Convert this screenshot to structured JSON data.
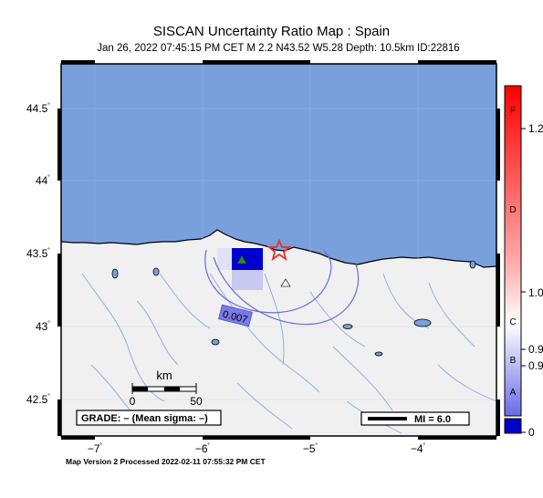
{
  "title": "SISCAN Uncertainty Ratio Map : Spain",
  "subtitle": "Jan 26, 2022 07:45:15 PM CET   M 2.2   N43.52 W5.28   Depth: 10.5km   ID:22816",
  "footer": "Map Version 2 Processed 2022-02-11 07:55:32 PM CET",
  "map": {
    "lat_ticks": [
      "44.5",
      "44",
      "43.5",
      "43",
      "42.5"
    ],
    "lon_ticks": [
      "−7",
      "−6",
      "−5",
      "−4"
    ],
    "degree_mark": "˚",
    "contour_label": "0.007",
    "scale_bar": {
      "title": "km",
      "start": "0",
      "end": "50"
    },
    "grade_box": "GRADE: – (Mean sigma: –)",
    "mi_box": "MI = 6.0",
    "colors": {
      "sea": "#7aa0dc",
      "land": "#f0f0f0",
      "river": "#8fb0e6",
      "cell_dark": "#0000cc",
      "cell_light": "#c8c8f0",
      "contour": "#6b6bdc",
      "star": "#e53030",
      "epicenter_triangle": "#2a8a2a"
    },
    "symbols": {
      "star": "star-icon",
      "green_triangle": "triangle-up-icon",
      "open_triangle": "triangle-outline-icon"
    }
  },
  "colorbar": {
    "letters": [
      "F",
      "D",
      "C",
      "B",
      "A"
    ],
    "values": [
      "1.2",
      "1.0",
      "0.9",
      "0.9",
      "0"
    ],
    "colors": [
      "#ff0000",
      "#ffffff",
      "#0000cc"
    ]
  }
}
